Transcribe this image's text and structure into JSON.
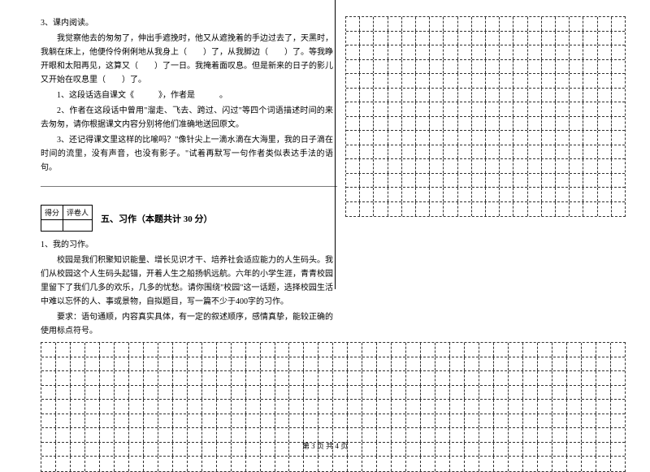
{
  "reading": {
    "title": "3、课内阅读。",
    "p1": "我觉察他去的匆匆了，伸出手遮挽时，他又从遮挽着的手边过去了，天黑时，我躺在床上，他便伶伶俐俐地从我身上（　　）了，从我脚边（　　）了。等我睁开眼和太阳再见，这算又（　　）了一日。我掩着面叹息。但是新来的日子的影儿又开始在叹息里（　　）了。",
    "q1": "1、这段话选自课文《　　　》，作者是　　　。",
    "q2": "2、作者在这段话中曾用\"溜走、飞去、跨过、闪过\"等四个词语描述时间的来去匆匆，请你根据课文内容分别将他们准确地送回原文。",
    "q3": "3、还记得课文里这样的比喻吗？\"像针尖上一滴水滴在大海里，我的日子滴在时间的流里，没有声音，也没有影子。\"试着再默写一句作者类似表达手法的语句。",
    "line": "_________________________________________________________________________"
  },
  "score": {
    "h1": "得分",
    "h2": "评卷人"
  },
  "section5": {
    "title": "五、习作（本题共计 30 分）",
    "q": "1、我的习作。",
    "p1": "校园是我们积聚知识能量、增长见识才干、培养社会适应能力的人生码头。我们从校园这个人生码头起锚，开着人生之船扬帆远航。六年的小学生涯，青青校园里留下了我们几多的欢乐，几多的忧愁。请你围绕\"校园\"这一话题，选择校园生活中难以忘怀的人、事或景物，自拟题目，写一篇不少于400字的习作。",
    "p2": "要求：语句通顺，内容真实具体，有一定的叙述顺序，感情真挚，能较正确的使用标点符号。"
  },
  "pagenum": "第 3 页 共 4 页",
  "grid": {
    "top_rows": 14,
    "top_cols": 20,
    "bottom_rows": 9,
    "bottom_cols": 40,
    "border_color": "#333333"
  }
}
